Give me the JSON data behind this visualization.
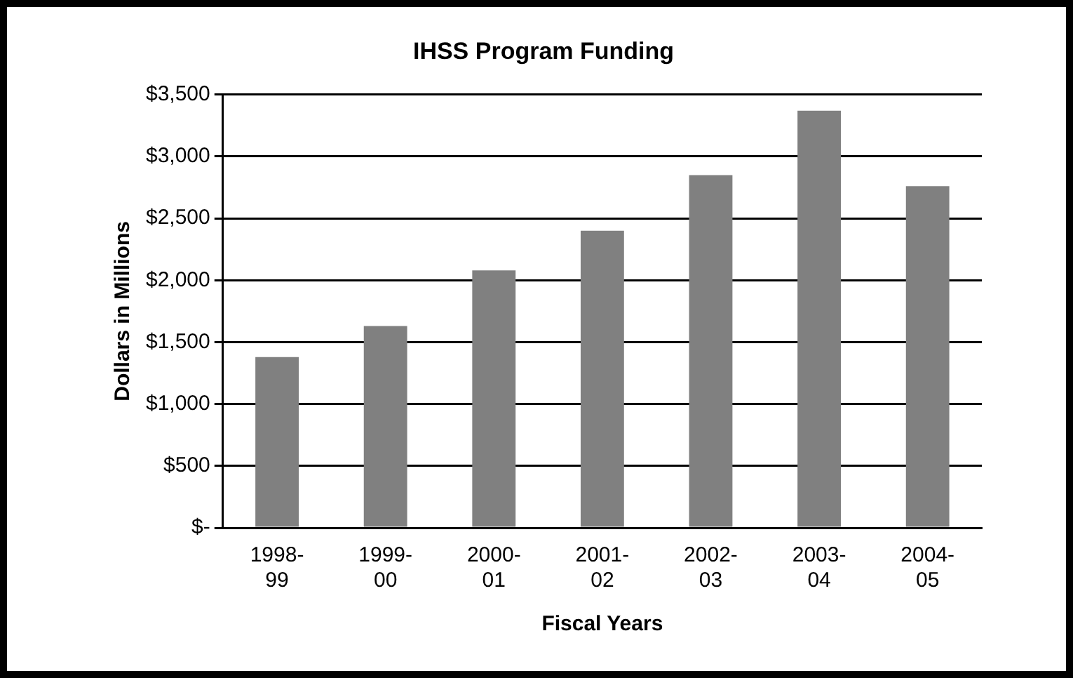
{
  "chart_data": {
    "type": "bar",
    "title": "IHSS Program Funding",
    "xlabel": "Fiscal Years",
    "ylabel": "Dollars in Millions",
    "categories": [
      "1998-99",
      "1999-00",
      "2000-01",
      "2001-02",
      "2002-03",
      "2003-04",
      "2004-05"
    ],
    "values": [
      1380,
      1630,
      2080,
      2400,
      2850,
      3370,
      2760
    ],
    "color": "#808080",
    "ylim": [
      0,
      3500
    ],
    "yticks": [
      {
        "value": 0,
        "label": "$-"
      },
      {
        "value": 500,
        "label": "$500"
      },
      {
        "value": 1000,
        "label": "$1,000"
      },
      {
        "value": 1500,
        "label": "$1,500"
      },
      {
        "value": 2000,
        "label": "$2,000"
      },
      {
        "value": 2500,
        "label": "$2,500"
      },
      {
        "value": 3000,
        "label": "$3,000"
      },
      {
        "value": 3500,
        "label": "$3,500"
      }
    ],
    "grid": "y",
    "legend": false
  }
}
